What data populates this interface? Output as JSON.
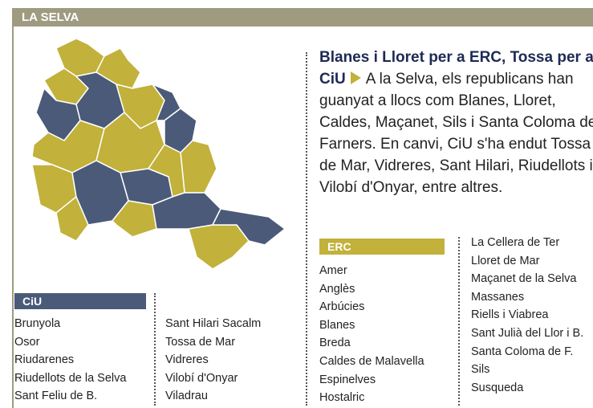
{
  "header": {
    "title": "LA SELVA"
  },
  "article": {
    "headline": "Blanes i Lloret per a ERC, Tossa per a CiU",
    "body": "A la Selva, els republicans han guanyat a llocs com Blanes, Lloret, Caldes, Maçanet, Sils i Santa Coloma de Farners. En canvi, CiU s'ha endut Tossa de Mar, Vidreres, Sant Hilari, Riudellots i Vilobí d'Onyar, entre altres."
  },
  "lists": {
    "ciu": {
      "label": "CiU",
      "columns": [
        [
          "Brunyola",
          "Osor",
          "Riudarenes",
          "Riudellots de la Selva",
          "Sant Feliu de B."
        ],
        [
          "Sant Hilari Sacalm",
          "Tossa de Mar",
          "Vidreres",
          "Vilobí d'Onyar",
          "Viladrau"
        ]
      ]
    },
    "erc": {
      "label": "ERC",
      "columns": [
        [
          "Amer",
          "Anglès",
          "Arbúcies",
          "Blanes",
          "Breda",
          "Caldes de Malavella",
          "Espinelves",
          "Hostalric"
        ],
        [
          "La Cellera de Ter",
          "Lloret de Mar",
          "Maçanet de la Selva",
          "Massanes",
          "Riells i Viabrea",
          "Sant Julià del Llor i B.",
          "Santa Coloma de F.",
          "Sils",
          "Susqueda"
        ]
      ]
    }
  }
}
